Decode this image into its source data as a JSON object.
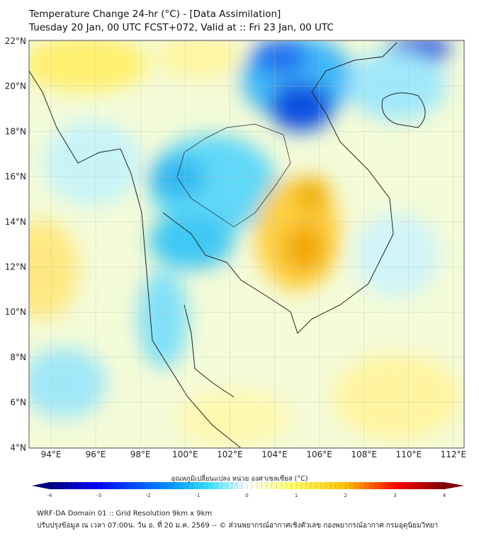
{
  "title": {
    "line1": "Temperature Change 24-hr (°C) - [Data Assimilation]",
    "line2": "Tuesday 20 Jan, 00 UTC FCST+072, Valid at :: Fri 23 Jan, 00 UTC"
  },
  "map": {
    "lat_labels": [
      "22°N",
      "20°N",
      "18°N",
      "16°N",
      "14°N",
      "12°N",
      "10°N",
      "8°N",
      "6°N",
      "4°N"
    ],
    "lon_labels": [
      "94°E",
      "96°E",
      "98°E",
      "100°E",
      "102°E",
      "104°E",
      "106°E",
      "108°E",
      "110°E",
      "112°E"
    ]
  },
  "colorbar": {
    "title": "อุณหภูมิเปลี่ยนแปลง หน่วย องศาเซลเซียส (°C)",
    "ticks": [
      "-4",
      "-3",
      "-2",
      "-1",
      "0",
      "1",
      "2",
      "3",
      "4"
    ],
    "range": [
      -4,
      4
    ],
    "colors": [
      "#000080",
      "#0000ff",
      "#0090ff",
      "#30e0ff",
      "#ffffff",
      "#ffff60",
      "#ffc000",
      "#ff0000",
      "#800000"
    ]
  },
  "footer": {
    "line1": "WRF-DA Domain 01 :: Grid Resolution 9km x 9km",
    "line2": "ปรับปรุงข้อมูล ณ เวลา 07:00น. วัน อ. ที่ 20 ม.ค. 2569 -- © ส่วนพยากรณ์อากาศเชิงตัวเลข กองพยากรณ์อากาศ กรมอุตุนิยมวิทยา"
  }
}
